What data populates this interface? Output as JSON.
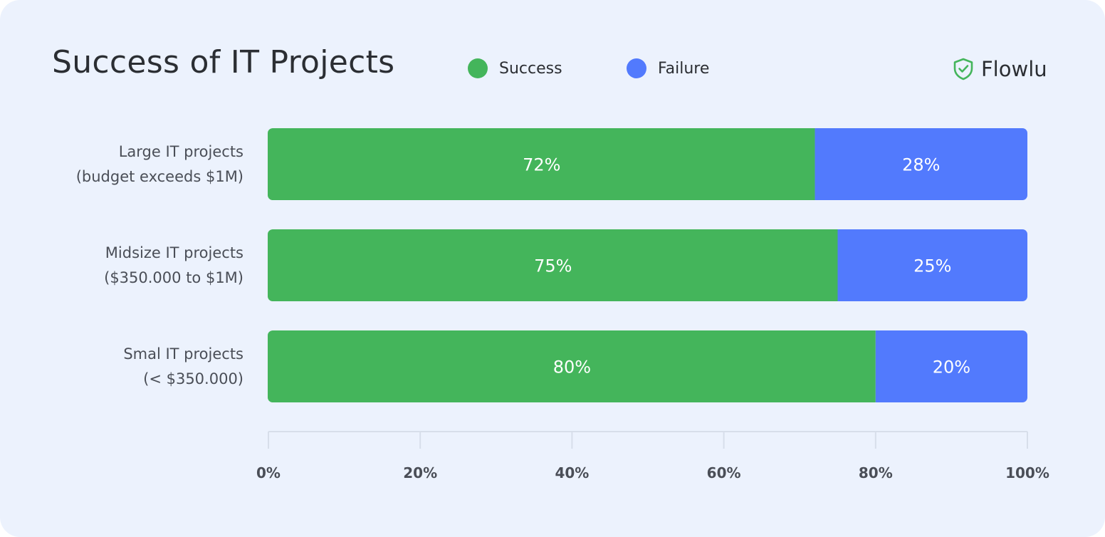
{
  "colors": {
    "success": "#44b55b",
    "failure": "#527afd",
    "axis": "#d7deea",
    "background": "#ecf2fd"
  },
  "brand": {
    "name": "Flowlu",
    "icon": "shield-check-icon"
  },
  "chart_data": {
    "type": "bar",
    "orientation": "horizontal",
    "stacked": true,
    "title": "Success of IT Projects",
    "legend": "top",
    "categories": [
      [
        "Large IT projects",
        "(budget exceeds $1M)"
      ],
      [
        "Midsize IT projects",
        "($350.000 to $1M)"
      ],
      [
        "Smal IT projects",
        "(< $350.000)"
      ]
    ],
    "series": [
      {
        "name": "Success",
        "values": [
          72,
          75,
          80
        ],
        "labels": [
          "72%",
          "75%",
          "80%"
        ]
      },
      {
        "name": "Failure",
        "values": [
          28,
          25,
          20
        ],
        "labels": [
          "28%",
          "25%",
          "20%"
        ]
      }
    ],
    "xlim": [
      0,
      100
    ],
    "x_ticks": [
      "0%",
      "20%",
      "40%",
      "60%",
      "80%",
      "100%"
    ],
    "grid": false
  }
}
